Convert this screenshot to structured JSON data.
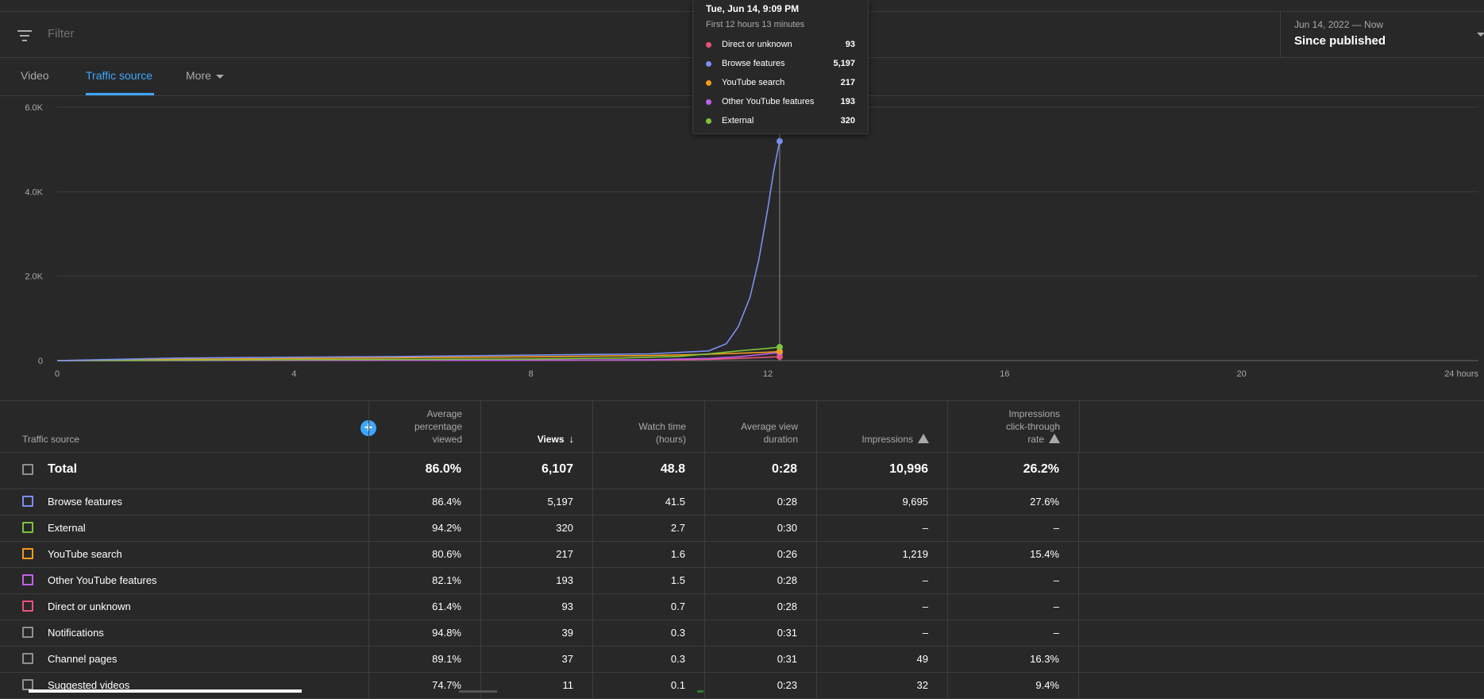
{
  "filter": {
    "placeholder": "Filter"
  },
  "date_range": {
    "range": "Jun 14, 2022 — Now",
    "label": "Since published"
  },
  "tabs": [
    {
      "label": "Video",
      "active": false
    },
    {
      "label": "Traffic source",
      "active": true
    },
    {
      "label": "More",
      "active": false
    }
  ],
  "tooltip": {
    "title": "Tue, Jun 14, 9:09 PM",
    "subtitle": "First 12 hours 13 minutes",
    "rows": [
      {
        "label": "Direct or unknown",
        "value": "93",
        "color": "#e8537a"
      },
      {
        "label": "Browse features",
        "value": "5,197",
        "color": "#7b8ff0"
      },
      {
        "label": "YouTube search",
        "value": "217",
        "color": "#f29b1c"
      },
      {
        "label": "Other YouTube features",
        "value": "193",
        "color": "#c060e8"
      },
      {
        "label": "External",
        "value": "320",
        "color": "#7ec43c"
      }
    ]
  },
  "chart_data": {
    "type": "line",
    "xlabel": "",
    "ylabel": "",
    "x_ticks": [
      "0",
      "4",
      "8",
      "12",
      "16",
      "20",
      "24 hours"
    ],
    "y_ticks": [
      "0",
      "2.0K",
      "4.0K",
      "6.0K"
    ],
    "xlim": [
      0,
      24
    ],
    "ylim": [
      0,
      6000
    ],
    "grid": true,
    "hover_x": 12.2,
    "series": [
      {
        "name": "Browse features",
        "color": "#7b8ff0",
        "x": [
          0,
          1,
          2,
          4,
          6,
          8,
          10,
          11,
          11.3,
          11.5,
          11.7,
          11.85,
          12.0,
          12.1,
          12.2
        ],
        "y": [
          0,
          30,
          60,
          80,
          100,
          130,
          160,
          230,
          400,
          800,
          1500,
          2400,
          3600,
          4500,
          5197
        ]
      },
      {
        "name": "External",
        "color": "#7ec43c",
        "x": [
          0,
          2,
          4,
          6,
          8,
          9.5,
          10.5,
          11,
          11.5,
          12,
          12.2
        ],
        "y": [
          0,
          10,
          20,
          30,
          40,
          60,
          100,
          160,
          230,
          290,
          320
        ]
      },
      {
        "name": "YouTube search",
        "color": "#f29b1c",
        "x": [
          0,
          1,
          3,
          5,
          8,
          10,
          11,
          12,
          12.2
        ],
        "y": [
          0,
          20,
          40,
          60,
          90,
          120,
          150,
          200,
          217
        ]
      },
      {
        "name": "Other YouTube features",
        "color": "#c060e8",
        "x": [
          0,
          8,
          10,
          11,
          11.5,
          12,
          12.2
        ],
        "y": [
          0,
          10,
          20,
          50,
          90,
          160,
          193
        ]
      },
      {
        "name": "Direct or unknown",
        "color": "#e8537a",
        "x": [
          0,
          4,
          8,
          10,
          11,
          11.5,
          12,
          12.2
        ],
        "y": [
          0,
          5,
          10,
          15,
          30,
          50,
          80,
          93
        ]
      }
    ]
  },
  "table": {
    "columns": {
      "source": "Traffic source",
      "avg_pct": [
        "Average",
        "percentage",
        "viewed"
      ],
      "views": "Views",
      "watch": [
        "Watch time",
        "(hours)"
      ],
      "avd": [
        "Average view",
        "duration"
      ],
      "impressions": "Impressions",
      "ctr": [
        "Impressions",
        "click-through",
        "rate"
      ]
    },
    "total": {
      "name": "Total",
      "avg_pct": "86.0%",
      "views": "6,107",
      "watch": "48.8",
      "avd": "0:28",
      "impressions": "10,996",
      "ctr": "26.2%"
    },
    "rows": [
      {
        "name": "Browse features",
        "color": "#7b8ff0",
        "avg_pct": "86.4%",
        "views": "5,197",
        "watch": "41.5",
        "avd": "0:28",
        "impressions": "9,695",
        "ctr": "27.6%"
      },
      {
        "name": "External",
        "color": "#7ec43c",
        "avg_pct": "94.2%",
        "views": "320",
        "watch": "2.7",
        "avd": "0:30",
        "impressions": "–",
        "ctr": "–"
      },
      {
        "name": "YouTube search",
        "color": "#f29b1c",
        "avg_pct": "80.6%",
        "views": "217",
        "watch": "1.6",
        "avd": "0:26",
        "impressions": "1,219",
        "ctr": "15.4%"
      },
      {
        "name": "Other YouTube features",
        "color": "#c060e8",
        "avg_pct": "82.1%",
        "views": "193",
        "watch": "1.5",
        "avd": "0:28",
        "impressions": "–",
        "ctr": "–"
      },
      {
        "name": "Direct or unknown",
        "color": "#e8537a",
        "avg_pct": "61.4%",
        "views": "93",
        "watch": "0.7",
        "avd": "0:28",
        "impressions": "–",
        "ctr": "–"
      },
      {
        "name": "Notifications",
        "color": "#909090",
        "avg_pct": "94.8%",
        "views": "39",
        "watch": "0.3",
        "avd": "0:31",
        "impressions": "–",
        "ctr": "–"
      },
      {
        "name": "Channel pages",
        "color": "#909090",
        "avg_pct": "89.1%",
        "views": "37",
        "watch": "0.3",
        "avd": "0:31",
        "impressions": "49",
        "ctr": "16.3%"
      },
      {
        "name": "Suggested videos",
        "color": "#909090",
        "avg_pct": "74.7%",
        "views": "11",
        "watch": "0.1",
        "avd": "0:23",
        "impressions": "32",
        "ctr": "9.4%"
      }
    ]
  }
}
